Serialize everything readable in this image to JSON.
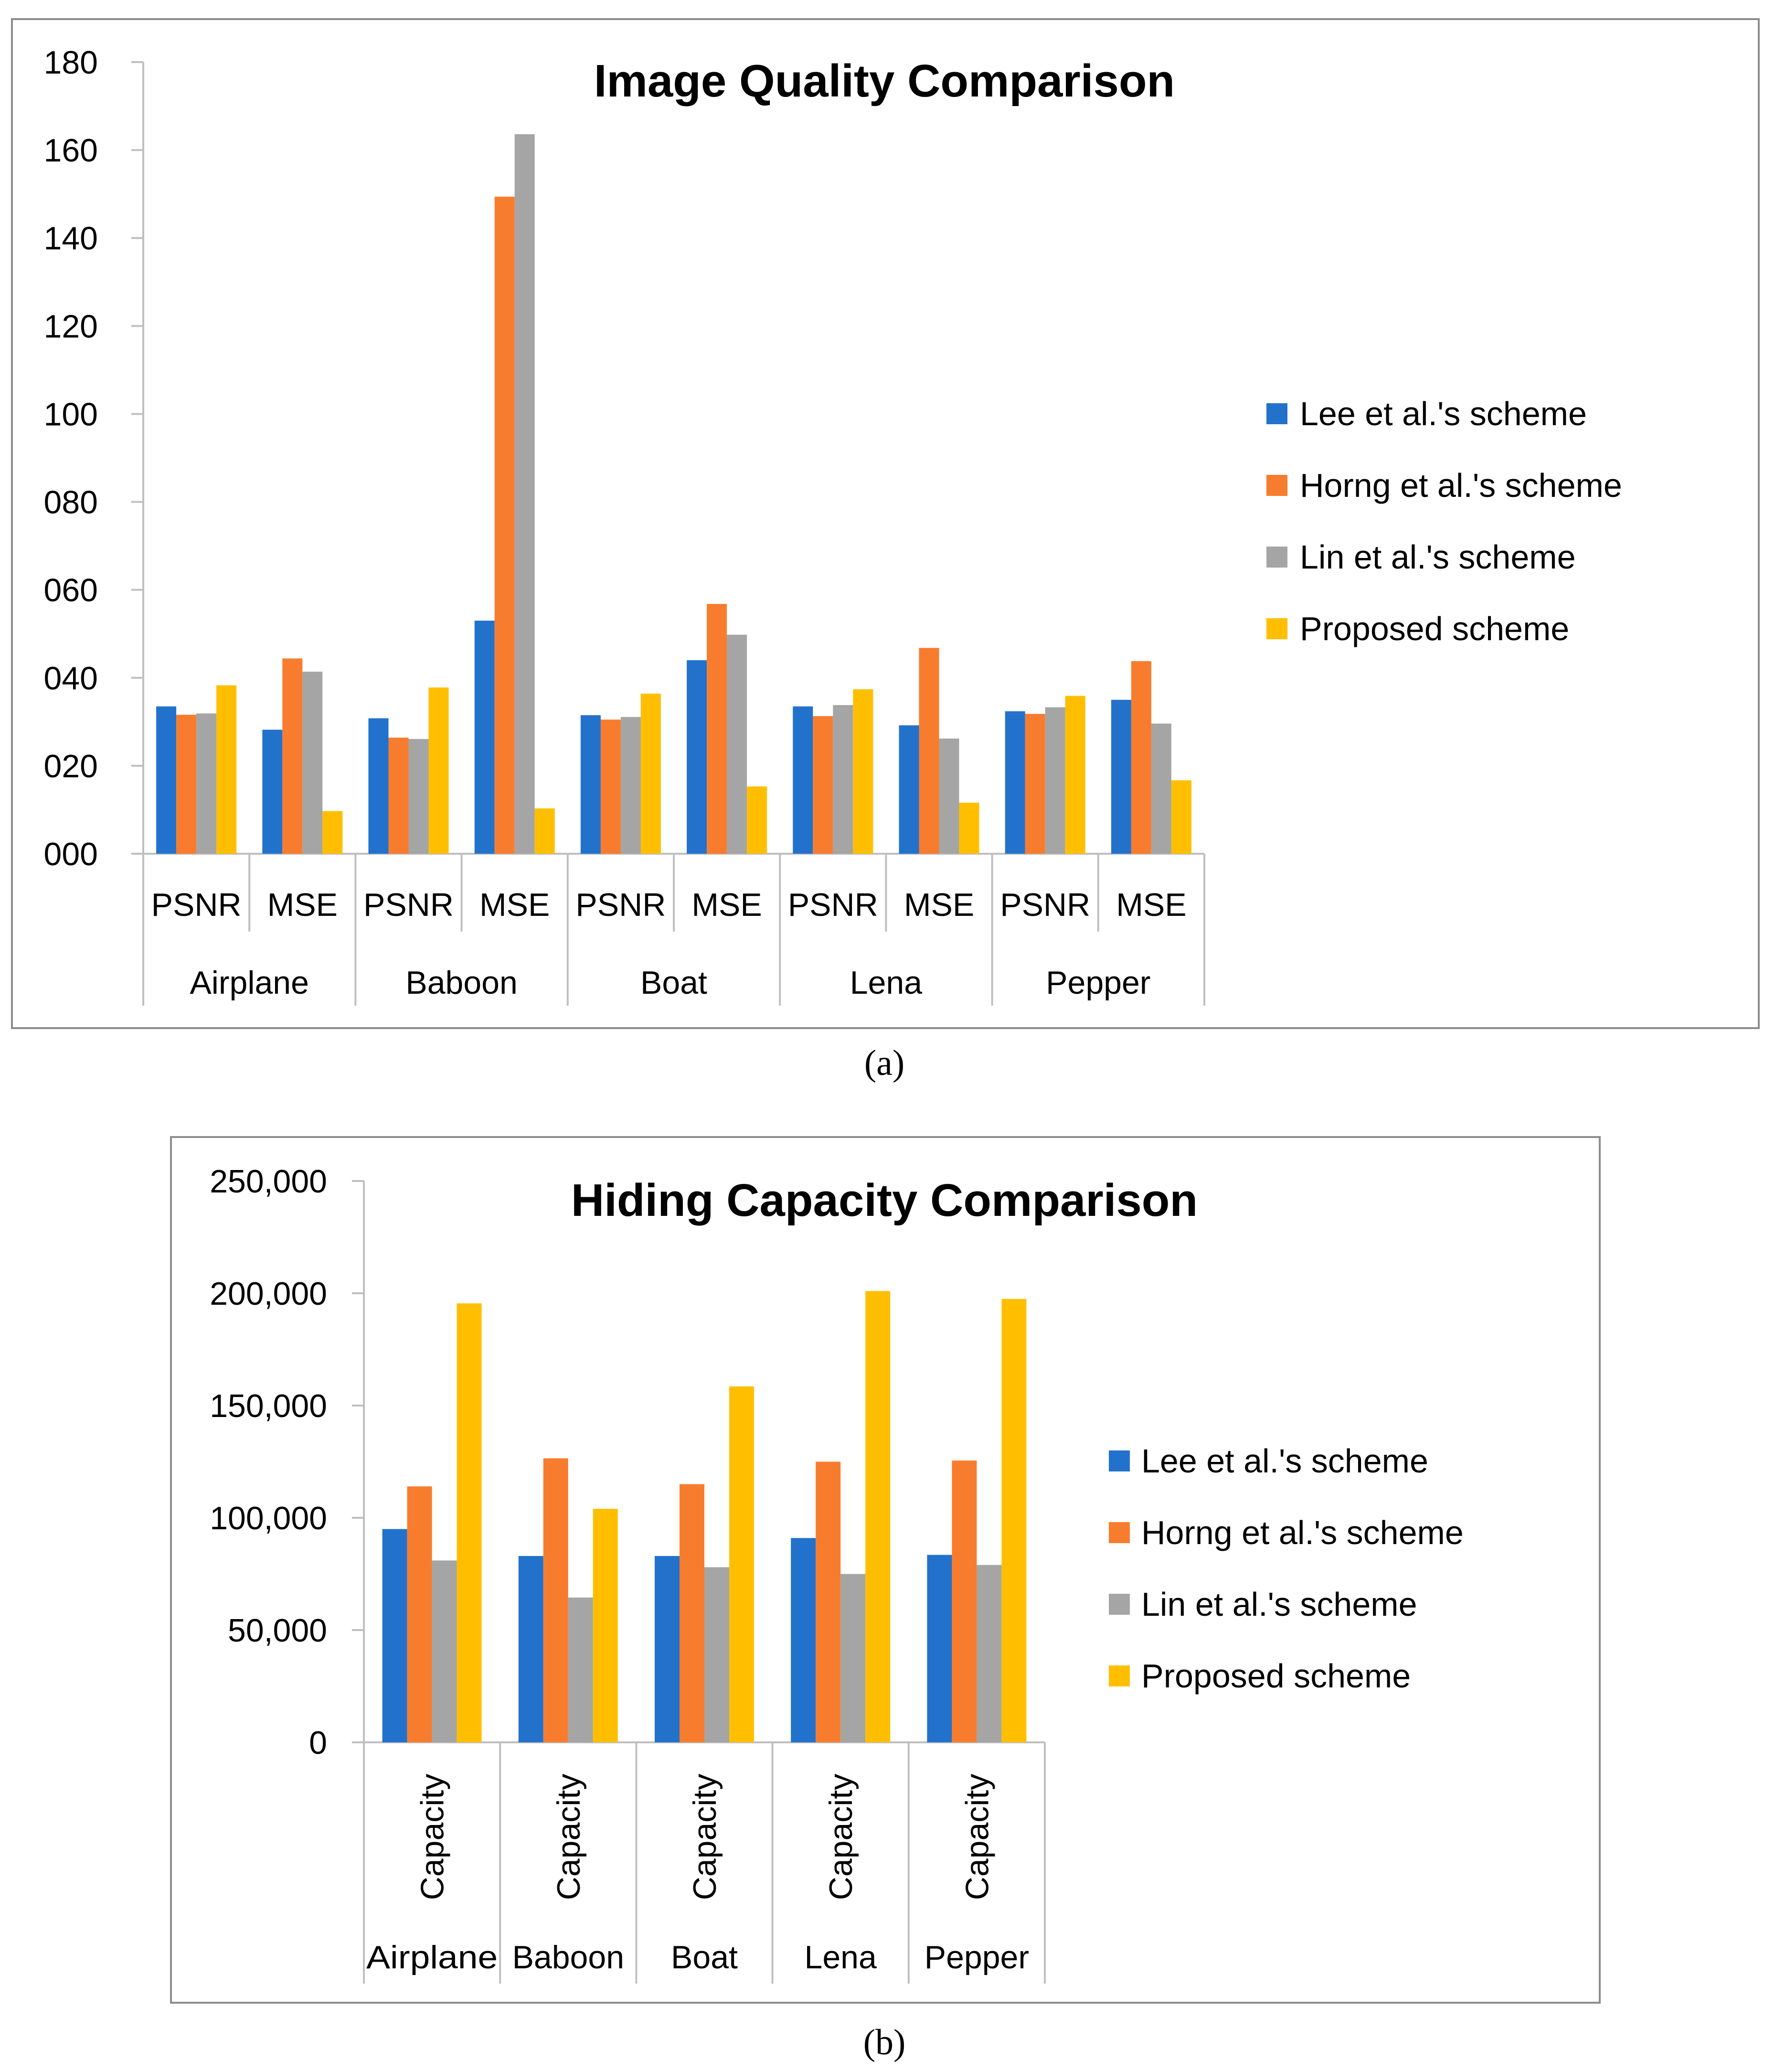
{
  "captions": {
    "a": "(a)",
    "b": "(b)"
  },
  "colors": {
    "lee": "#2272cc",
    "horng": "#f87c2e",
    "lin": "#a5a5a5",
    "proposed": "#ffbf00"
  },
  "chart_data": [
    {
      "type": "bar",
      "title": "Image Quality Comparison",
      "xlabel": "",
      "ylabel": "",
      "ylim": [
        0,
        180
      ],
      "yticks": [
        "000",
        "020",
        "040",
        "060",
        "080",
        "100",
        "120",
        "140",
        "160",
        "180"
      ],
      "groups": [
        "Airplane",
        "Baboon",
        "Boat",
        "Lena",
        "Pepper"
      ],
      "categories": [
        "PSNR",
        "MSE",
        "PSNR",
        "MSE",
        "PSNR",
        "MSE",
        "PSNR",
        "MSE",
        "PSNR",
        "MSE"
      ],
      "legend_position": "right",
      "grid": false,
      "series": [
        {
          "name": "Lee et al.'s scheme",
          "color": "#2272cc",
          "values": [
            33.5,
            28.2,
            30.8,
            53.0,
            31.5,
            44.0,
            33.5,
            29.2,
            32.4,
            35.0
          ]
        },
        {
          "name": "Horng et al.'s scheme",
          "color": "#f87c2e",
          "values": [
            31.6,
            44.4,
            26.4,
            149.4,
            30.5,
            56.8,
            31.3,
            46.8,
            31.8,
            43.8
          ]
        },
        {
          "name": "Lin et al.'s scheme",
          "color": "#a5a5a5",
          "values": [
            31.9,
            41.4,
            26.1,
            163.6,
            31.1,
            49.8,
            33.8,
            26.2,
            33.3,
            29.6
          ]
        },
        {
          "name": "Proposed scheme",
          "color": "#ffbf00",
          "values": [
            38.3,
            9.7,
            37.8,
            10.3,
            36.4,
            15.3,
            37.4,
            11.6,
            35.9,
            16.7
          ]
        }
      ]
    },
    {
      "type": "bar",
      "title": "Hiding Capacity Comparison",
      "xlabel": "",
      "ylabel": "",
      "ylim": [
        0,
        250000
      ],
      "yticks": [
        "0",
        "50,000",
        "100,000",
        "150,000",
        "200,000",
        "250,000"
      ],
      "groups": [
        "Airplane",
        "Baboon",
        "Boat",
        "Lena",
        "Pepper"
      ],
      "categories": [
        "Capacity",
        "Capacity",
        "Capacity",
        "Capacity",
        "Capacity"
      ],
      "legend_position": "right",
      "grid": false,
      "series": [
        {
          "name": "Lee et al.'s scheme",
          "color": "#2272cc",
          "values": [
            95000,
            83000,
            83000,
            91000,
            83500
          ]
        },
        {
          "name": "Horng et al.'s scheme",
          "color": "#f87c2e",
          "values": [
            114000,
            126500,
            115000,
            125000,
            125500
          ]
        },
        {
          "name": "Lin et al.'s scheme",
          "color": "#a5a5a5",
          "values": [
            81000,
            64500,
            78000,
            75000,
            79000
          ]
        },
        {
          "name": "Proposed scheme",
          "color": "#ffbf00",
          "values": [
            195500,
            104000,
            158500,
            201000,
            197500
          ]
        }
      ]
    }
  ]
}
